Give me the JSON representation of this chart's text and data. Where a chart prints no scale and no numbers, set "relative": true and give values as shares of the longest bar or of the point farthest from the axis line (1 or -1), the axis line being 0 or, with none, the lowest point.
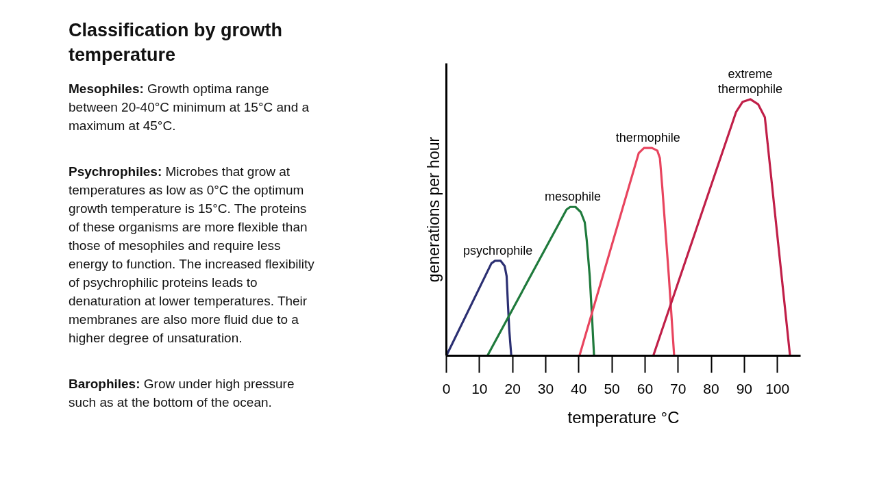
{
  "chart_data": {
    "type": "line",
    "title": "Classification by growth temperature",
    "xlabel": "temperature °C",
    "ylabel": "generations per hour",
    "relative": true,
    "xlim": [
      0,
      107
    ],
    "xticks": [
      0,
      10,
      20,
      30,
      40,
      50,
      60,
      70,
      80,
      90,
      100
    ],
    "grid": false,
    "legend": false,
    "series": [
      {
        "name": "psychrophile",
        "color": "#2b2f72",
        "x": [
          0,
          13.6,
          14.7,
          16.4,
          17.6,
          18.2,
          18.6,
          19.0,
          19.6
        ],
        "values": [
          0,
          0.36,
          0.37,
          0.37,
          0.35,
          0.31,
          0.2,
          0.1,
          0
        ]
      },
      {
        "name": "mesophile",
        "color": "#1f7a3c",
        "x": [
          12.4,
          36.3,
          37.4,
          39.0,
          40.6,
          41.8,
          42.4,
          43.3,
          44.0,
          44.6
        ],
        "values": [
          0,
          0.57,
          0.58,
          0.58,
          0.56,
          0.52,
          0.45,
          0.31,
          0.15,
          0
        ]
      },
      {
        "name": "thermophile",
        "color": "#e8445e",
        "x": [
          40.2,
          58.1,
          59.7,
          62.1,
          63.7,
          64.5,
          65.2,
          67.2,
          68.8
        ],
        "values": [
          0,
          0.79,
          0.81,
          0.81,
          0.8,
          0.77,
          0.66,
          0.31,
          0
        ]
      },
      {
        "name": "extreme thermophile",
        "color": "#c01f48",
        "x": [
          62.5,
          87.5,
          89.5,
          91.8,
          94.2,
          96.2,
          103.8
        ],
        "values": [
          0,
          0.95,
          0.99,
          1,
          0.98,
          0.93,
          0
        ]
      }
    ],
    "annotations": [
      "Mesophiles: Growth optima range between 20-40°C minimum at 15°C and a maximum at 45°C.",
      "Psychrophiles: Microbes that grow at temperatures as low as 0°C the optimum growth temperature is 15°C. The proteins of these organisms are more flexible than those of mesophiles and require less energy to function. The increased flexibility of psychrophilic proteins leads to denaturation at lower temperatures. Their membranes are also more fluid due to a higher degree of unsaturation.",
      "Barophiles: Grow under high pressure such as at the bottom of the ocean."
    ]
  }
}
